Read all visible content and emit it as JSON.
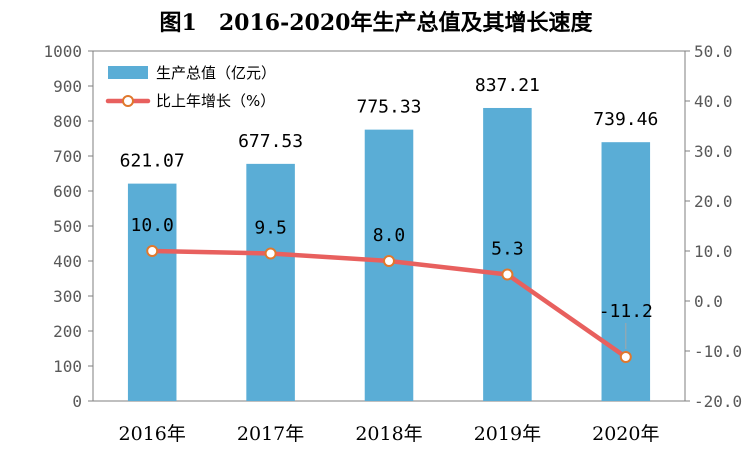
{
  "chart_data": {
    "type": "bar+line",
    "title": "图1　2016-2020年生产总值及其增长速度",
    "categories": [
      "2016年",
      "2017年",
      "2018年",
      "2019年",
      "2020年"
    ],
    "series": [
      {
        "name": "生产总值（亿元）",
        "type": "bar",
        "axis": "left",
        "values": [
          621.07,
          677.53,
          775.33,
          837.21,
          739.46
        ],
        "labels": [
          "621.07",
          "677.53",
          "775.33",
          "837.21",
          "739.46"
        ],
        "color": "#5aadd6"
      },
      {
        "name": "比上年增长（%）",
        "type": "line",
        "axis": "right",
        "values": [
          10.0,
          9.5,
          8.0,
          5.3,
          -11.2
        ],
        "labels": [
          "10.0",
          "9.5",
          "8.0",
          "5.3",
          "-11.2"
        ],
        "color": "#e8605e"
      }
    ],
    "y_left": {
      "min": 0,
      "max": 1000,
      "step": 100,
      "ticks": [
        "0",
        "100",
        "200",
        "300",
        "400",
        "500",
        "600",
        "700",
        "800",
        "900",
        "1000"
      ]
    },
    "y_right": {
      "min": -20,
      "max": 50,
      "step": 10,
      "ticks": [
        "-20.0",
        "-10.0",
        "0.0",
        "10.0",
        "20.0",
        "30.0",
        "40.0",
        "50.0"
      ]
    },
    "grid": false,
    "legend_position": "top-left"
  }
}
